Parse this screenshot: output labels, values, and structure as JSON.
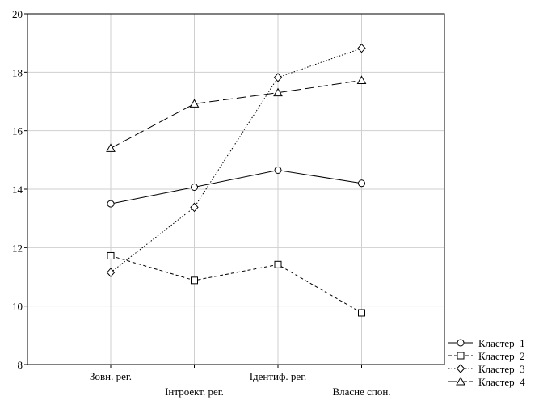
{
  "chart_data": {
    "type": "line",
    "title": "",
    "xlabel": "",
    "ylabel": "",
    "categories": [
      "Зовн. рег.",
      "Інтроект. рег.",
      "Ідентиф. рег.",
      "Власне спон."
    ],
    "ylim": [
      8,
      20
    ],
    "yticks": [
      8,
      10,
      12,
      14,
      16,
      18,
      20
    ],
    "grid": true,
    "legend_position": "bottom-right",
    "series": [
      {
        "name": "Кластер  1",
        "marker": "circle",
        "dash": "solid",
        "values": [
          13.5,
          14.07,
          14.65,
          14.2
        ]
      },
      {
        "name": "Кластер  2",
        "marker": "square",
        "dash": "short-dash",
        "values": [
          11.72,
          10.88,
          11.42,
          9.77
        ]
      },
      {
        "name": "Кластер  3",
        "marker": "diamond",
        "dash": "dotted",
        "values": [
          11.15,
          13.38,
          17.82,
          18.82
        ]
      },
      {
        "name": "Кластер  4",
        "marker": "triangle",
        "dash": "long-dash",
        "values": [
          15.4,
          16.92,
          17.3,
          17.72
        ]
      }
    ]
  }
}
